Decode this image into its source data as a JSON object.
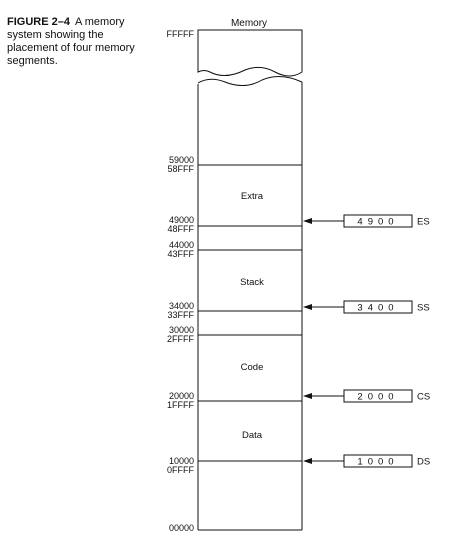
{
  "caption": {
    "figure_label": "FIGURE 2–4",
    "text": "A memory system showing the placement of four memory segments."
  },
  "memory": {
    "title": "Memory",
    "top_address": "FFFFF",
    "bottom_address": "00000",
    "boundaries": [
      {
        "upper": "59000",
        "lower": "58FFF"
      },
      {
        "upper": "49000",
        "lower": "48FFF"
      },
      {
        "upper": "44000",
        "lower": "43FFF"
      },
      {
        "upper": "34000",
        "lower": "33FFF"
      },
      {
        "upper": "30000",
        "lower": "2FFFF"
      },
      {
        "upper": "20000",
        "lower": "1FFFF"
      },
      {
        "upper": "10000",
        "lower": "0FFFF"
      }
    ],
    "segments": [
      {
        "label": "Extra"
      },
      {
        "label": "Stack"
      },
      {
        "label": "Code"
      },
      {
        "label": "Data"
      }
    ]
  },
  "registers": [
    {
      "value": "4900",
      "name": "ES"
    },
    {
      "value": "3400",
      "name": "SS"
    },
    {
      "value": "2000",
      "name": "CS"
    },
    {
      "value": "1000",
      "name": "DS"
    }
  ]
}
